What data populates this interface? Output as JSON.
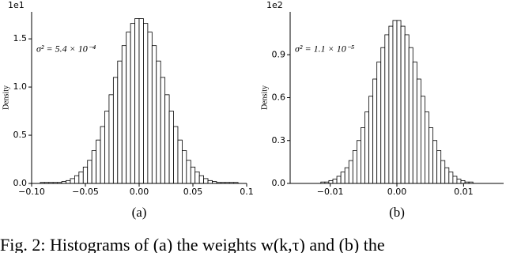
{
  "charts": [
    {
      "chart_data": {
        "type": "histogram",
        "subcaption": "(a)",
        "ylabel": "Density",
        "offset_text": "1e1",
        "annotation": "σ² = 5.4 × 10⁻⁴",
        "color": "#ffffff",
        "edgecolor": "#000000",
        "bins": [
          -0.1,
          -0.096,
          -0.092,
          -0.088,
          -0.084,
          -0.08,
          -0.076,
          -0.072,
          -0.068,
          -0.064,
          -0.06,
          -0.056,
          -0.052,
          -0.048,
          -0.044,
          -0.04,
          -0.036,
          -0.032,
          -0.028,
          -0.024,
          -0.02,
          -0.016,
          -0.012,
          -0.008,
          -0.004,
          0,
          0.004,
          0.008,
          0.012,
          0.016,
          0.02,
          0.024,
          0.028,
          0.032,
          0.036,
          0.04,
          0.044,
          0.048,
          0.052,
          0.056,
          0.06,
          0.064,
          0.068,
          0.072,
          0.076,
          0.08,
          0.084,
          0.088,
          0.092,
          0.096,
          0.1
        ],
        "values": [
          0,
          0,
          0.01,
          0.01,
          0.01,
          0.01,
          0.01,
          0.02,
          0.03,
          0.05,
          0.08,
          0.12,
          0.17,
          0.24,
          0.34,
          0.45,
          0.59,
          0.75,
          0.92,
          1.1,
          1.27,
          1.43,
          1.57,
          1.66,
          1.71,
          1.71,
          1.66,
          1.57,
          1.43,
          1.27,
          1.1,
          0.92,
          0.75,
          0.59,
          0.45,
          0.34,
          0.24,
          0.17,
          0.12,
          0.08,
          0.05,
          0.03,
          0.02,
          0.01,
          0.01,
          0.01,
          0.01,
          0.01,
          0,
          0
        ],
        "xlim": [
          -0.1,
          0.1
        ],
        "ylim": [
          0,
          1.78
        ],
        "xticks": [
          {
            "value": -0.1,
            "label": "−0.10"
          },
          {
            "value": -0.05,
            "label": "−0.05"
          },
          {
            "value": 0,
            "label": "0.00"
          },
          {
            "value": 0.05,
            "label": "0.05"
          },
          0.1
        ],
        "yticks": [
          {
            "value": 0,
            "label": "0.0"
          },
          0.5,
          {
            "value": 1,
            "label": "1.0"
          },
          1.5
        ]
      }
    },
    {
      "chart_data": {
        "type": "histogram",
        "subcaption": "(b)",
        "ylabel": "Density",
        "offset_text": "1e2",
        "annotation": "σ² = 1.1 × 10⁻⁵",
        "color": "#ffffff",
        "edgecolor": "#000000",
        "bins": [
          -0.015,
          -0.0144,
          -0.0138,
          -0.0132,
          -0.0126,
          -0.012,
          -0.0114,
          -0.0108,
          -0.0102,
          -0.0096,
          -0.009,
          -0.0084,
          -0.0078,
          -0.0072,
          -0.0066,
          -0.006,
          -0.0054,
          -0.0048,
          -0.0042,
          -0.0036,
          -0.003,
          -0.0024,
          -0.0018,
          -0.0012,
          -0.0006,
          0,
          0.0006,
          0.0012,
          0.0018,
          0.0024,
          0.003,
          0.0036,
          0.0042,
          0.0048,
          0.0054,
          0.006,
          0.0066,
          0.0072,
          0.0078,
          0.0084,
          0.009,
          0.0096,
          0.0102,
          0.0108,
          0.0114,
          0.012,
          0.0126,
          0.0132,
          0.0138,
          0.0144,
          0.015
        ],
        "values": [
          0,
          0,
          0,
          0,
          0,
          0,
          0.01,
          0.01,
          0.02,
          0.03,
          0.05,
          0.08,
          0.11,
          0.16,
          0.23,
          0.3,
          0.39,
          0.5,
          0.61,
          0.73,
          0.85,
          0.95,
          1.04,
          1.1,
          1.14,
          1.14,
          1.1,
          1.04,
          0.95,
          0.85,
          0.73,
          0.61,
          0.5,
          0.39,
          0.3,
          0.23,
          0.16,
          0.11,
          0.08,
          0.05,
          0.03,
          0.02,
          0.01,
          0.01,
          0,
          0,
          0,
          0,
          0,
          0
        ],
        "xlim": [
          -0.016,
          0.016
        ],
        "ylim": [
          0,
          1.2
        ],
        "xticks": [
          {
            "value": -0.01,
            "label": "−0.01"
          },
          {
            "value": 0,
            "label": "0.00"
          },
          0.01
        ],
        "yticks": [
          {
            "value": 0,
            "label": "0.0"
          },
          0.3,
          0.6,
          0.9
        ]
      }
    }
  ],
  "caption": "Fig. 2: Histograms of (a) the weights w(k,τ) and (b) the"
}
